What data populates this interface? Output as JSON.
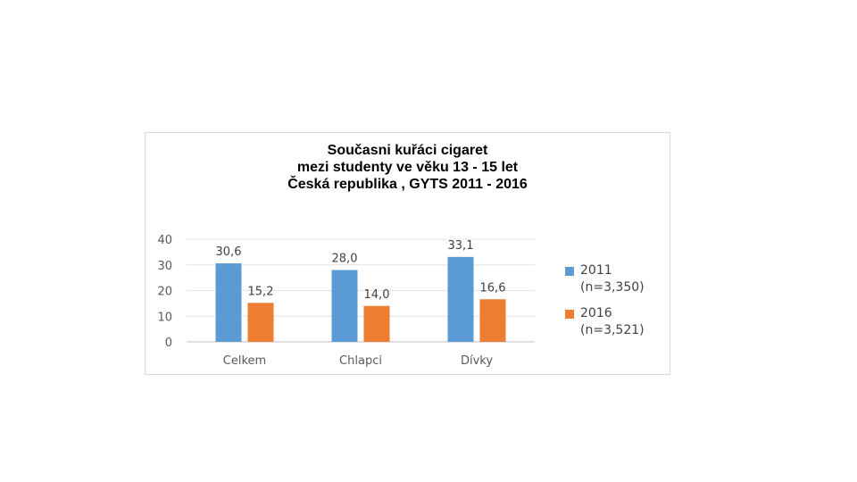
{
  "chart_data": {
    "type": "bar",
    "title_lines": [
      "Současni kuřáci cigaret",
      "mezi studenty ve věku 13 - 15 let",
      "Česká republika , GYTS 2011 - 2016"
    ],
    "categories": [
      "Celkem",
      "Chlapci",
      "Dívky"
    ],
    "series": [
      {
        "name_lines": [
          "2011",
          "(n=3,350)"
        ],
        "color": "#5b9bd5",
        "values": [
          30.6,
          28.0,
          33.1
        ],
        "labels": [
          "30,6",
          "28,0",
          "33,1"
        ]
      },
      {
        "name_lines": [
          "2016",
          "(n=3,521)"
        ],
        "color": "#ed7d31",
        "values": [
          15.2,
          14.0,
          16.6
        ],
        "labels": [
          "15,2",
          "14,0",
          "16,6"
        ]
      }
    ],
    "yticks": [
      0,
      10,
      20,
      30,
      40
    ],
    "ylim": [
      0,
      40
    ],
    "grid": true,
    "legend_position": "right"
  }
}
